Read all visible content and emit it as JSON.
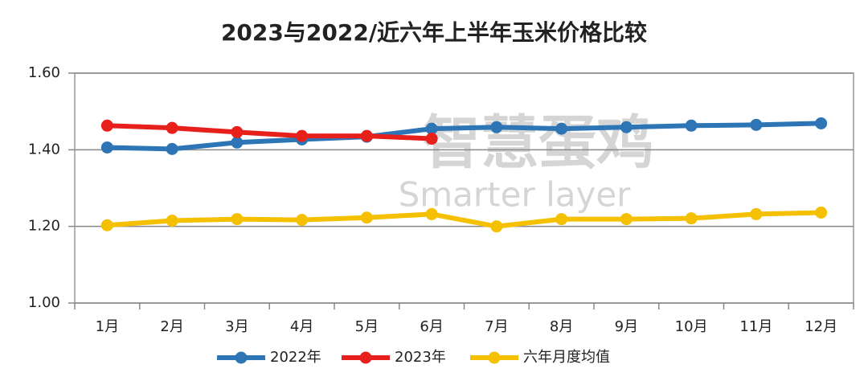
{
  "chart_data": {
    "type": "line",
    "title": "2023与2022/近六年上半年玉米价格比较",
    "categories": [
      "1月",
      "2月",
      "3月",
      "4月",
      "5月",
      "6月",
      "7月",
      "8月",
      "9月",
      "10月",
      "11月",
      "12月"
    ],
    "series": [
      {
        "name": "2022年",
        "color": "#2e75b6",
        "values": [
          1.406,
          1.402,
          1.419,
          1.427,
          1.434,
          1.455,
          1.459,
          1.455,
          1.459,
          1.463,
          1.465,
          1.469
        ]
      },
      {
        "name": "2023年",
        "color": "#e8201c",
        "values": [
          1.463,
          1.457,
          1.446,
          1.436,
          1.436,
          1.429,
          null,
          null,
          null,
          null,
          null,
          null
        ]
      },
      {
        "name": "六年月度均值",
        "color": "#f5c000",
        "values": [
          1.203,
          1.215,
          1.219,
          1.217,
          1.223,
          1.232,
          1.2,
          1.219,
          1.219,
          1.221,
          1.232,
          1.236
        ]
      }
    ],
    "ylim": [
      1.0,
      1.6
    ],
    "yticks": [
      {
        "value": 1.0,
        "label": "1.00"
      },
      {
        "value": 1.2,
        "label": "1.20"
      },
      {
        "value": 1.4,
        "label": "1.40"
      },
      {
        "value": 1.6,
        "label": "1.60"
      }
    ],
    "grid": true,
    "legend": "bottom",
    "watermark": [
      "智慧蛋鸡",
      "Smarter layer"
    ]
  }
}
